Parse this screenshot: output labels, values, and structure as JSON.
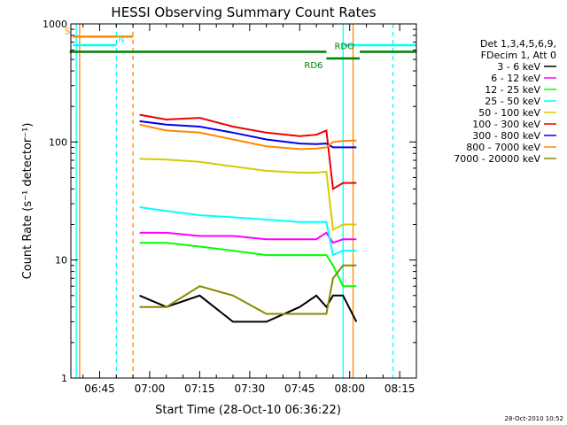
{
  "chart_data": {
    "type": "line",
    "title": "HESSI Observing Summary Count Rates",
    "xlabel": "Start Time (28-Oct-10 06:36:22)",
    "ylabel": "Count Rate (s⁻¹ detector⁻¹)",
    "yscale": "log",
    "ylim": [
      1,
      1000
    ],
    "xlim": [
      "06:36:22",
      "08:20:00"
    ],
    "yticks": [
      "1",
      "10",
      "100",
      "1000"
    ],
    "xticks": [
      "06:45",
      "07:00",
      "07:15",
      "07:30",
      "07:45",
      "08:00",
      "08:15"
    ],
    "legend_header": [
      "Det 1,3,4,5,6,9,",
      "FDecim 1, Att 0"
    ],
    "legend_position": "right",
    "timestamp": "28-Oct-2010 10:52",
    "series": [
      {
        "name": "3 - 6 keV",
        "color": "#000000",
        "x": [
          "06:57",
          "07:05",
          "07:15",
          "07:25",
          "07:35",
          "07:45",
          "07:50",
          "07:53",
          "07:55",
          "07:58",
          "08:02"
        ],
        "y": [
          5,
          4,
          5,
          3,
          3,
          4,
          5,
          4,
          5,
          5,
          3
        ]
      },
      {
        "name": "6 - 12 keV",
        "color": "#ff00ff",
        "x": [
          "06:57",
          "07:05",
          "07:15",
          "07:25",
          "07:35",
          "07:45",
          "07:50",
          "07:53",
          "07:55",
          "07:58",
          "08:02"
        ],
        "y": [
          17,
          17,
          16,
          16,
          15,
          15,
          15,
          17,
          14,
          15,
          15
        ]
      },
      {
        "name": "12 - 25 keV",
        "color": "#00ff00",
        "x": [
          "06:57",
          "07:05",
          "07:15",
          "07:25",
          "07:35",
          "07:45",
          "07:50",
          "07:53",
          "07:55",
          "07:58",
          "08:02"
        ],
        "y": [
          14,
          14,
          13,
          12,
          11,
          11,
          11,
          11,
          9,
          6,
          6
        ]
      },
      {
        "name": "25 - 50 keV",
        "color": "#00ffff",
        "x": [
          "06:57",
          "07:05",
          "07:15",
          "07:25",
          "07:35",
          "07:45",
          "07:50",
          "07:53",
          "07:55",
          "07:58",
          "08:02"
        ],
        "y": [
          28,
          26,
          24,
          23,
          22,
          21,
          21,
          21,
          11,
          12,
          12
        ]
      },
      {
        "name": "50 - 100 keV",
        "color": "#d4cc00",
        "x": [
          "06:57",
          "07:05",
          "07:15",
          "07:25",
          "07:35",
          "07:45",
          "07:50",
          "07:53",
          "07:55",
          "07:58",
          "08:02"
        ],
        "y": [
          72,
          71,
          68,
          62,
          57,
          55,
          55,
          56,
          18,
          20,
          20
        ]
      },
      {
        "name": "100 - 300 keV",
        "color": "#ee0000",
        "x": [
          "06:57",
          "07:05",
          "07:15",
          "07:25",
          "07:35",
          "07:45",
          "07:50",
          "07:53",
          "07:55",
          "07:58",
          "08:02"
        ],
        "y": [
          170,
          155,
          160,
          135,
          120,
          112,
          115,
          125,
          40,
          45,
          45
        ]
      },
      {
        "name": "300 - 800 keV",
        "color": "#0000ee",
        "x": [
          "06:57",
          "07:05",
          "07:15",
          "07:25",
          "07:35",
          "07:45",
          "07:50",
          "07:53",
          "07:55",
          "07:58",
          "08:02"
        ],
        "y": [
          150,
          140,
          135,
          120,
          105,
          97,
          96,
          97,
          90,
          90,
          90
        ]
      },
      {
        "name": "800 - 7000 keV",
        "color": "#ff8800",
        "x": [
          "06:57",
          "07:05",
          "07:15",
          "07:25",
          "07:35",
          "07:45",
          "07:50",
          "07:53",
          "07:55",
          "07:58",
          "08:02"
        ],
        "y": [
          140,
          125,
          120,
          105,
          92,
          87,
          88,
          90,
          100,
          102,
          103
        ]
      },
      {
        "name": "7000 - 20000 keV",
        "color": "#888800",
        "x": [
          "06:57",
          "07:05",
          "07:15",
          "07:25",
          "07:35",
          "07:45",
          "07:50",
          "07:53",
          "07:55",
          "07:58",
          "08:02"
        ],
        "y": [
          4,
          4,
          6,
          5,
          3.5,
          3.5,
          3.5,
          3.5,
          7,
          9,
          9
        ]
      }
    ],
    "time_markers": [
      {
        "time": "06:38",
        "color": "#00ffff",
        "style": "solid"
      },
      {
        "time": "06:39",
        "color": "#ff8800",
        "style": "solid"
      },
      {
        "time": "06:50",
        "color": "#00ffff",
        "style": "dashed"
      },
      {
        "time": "06:55",
        "color": "#ff8800",
        "style": "dashed"
      },
      {
        "time": "07:58",
        "color": "#00ffff",
        "style": "solid"
      },
      {
        "time": "08:01",
        "color": "#ff8800",
        "style": "solid"
      },
      {
        "time": "08:13",
        "color": "#00ffff",
        "style": "dashed"
      }
    ],
    "flag_bars": [
      {
        "label": "S",
        "color": "#ff8800",
        "segments": [
          [
            "06:37",
            "06:55"
          ]
        ],
        "y": 780
      },
      {
        "label": "N",
        "color": "#00ffff",
        "segments": [
          [
            "06:37",
            "06:50"
          ],
          [
            "07:58",
            "08:20"
          ]
        ],
        "y": 660
      },
      {
        "label": "RDO",
        "color": "#008000",
        "segments": [
          [
            "06:36",
            "07:53"
          ],
          [
            "08:03",
            "08:20"
          ]
        ],
        "y": 580
      },
      {
        "label": "RD6",
        "color": "#008000",
        "segments": [
          [
            "07:53",
            "08:03"
          ]
        ],
        "y": 510
      }
    ]
  }
}
